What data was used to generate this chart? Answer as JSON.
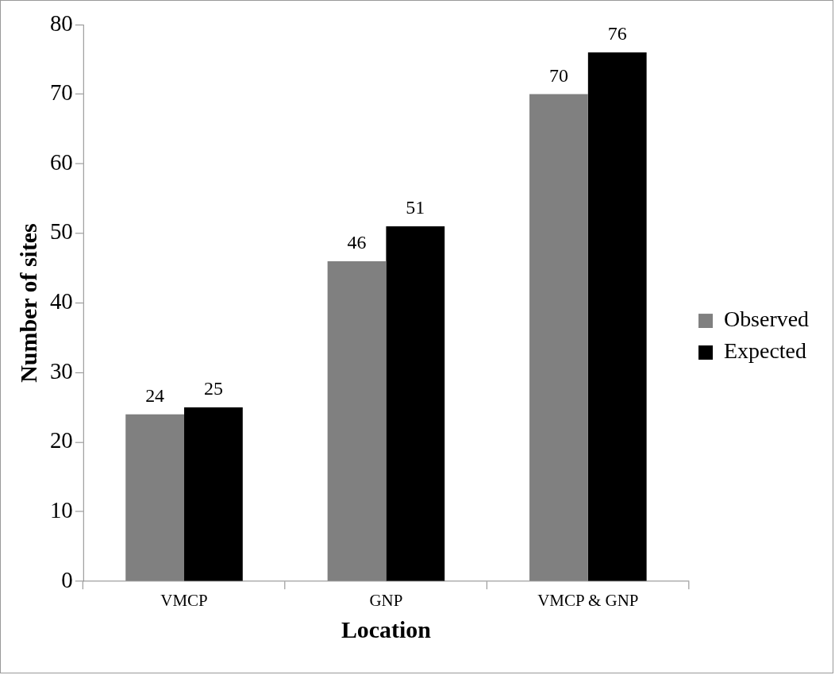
{
  "chart_data": {
    "type": "bar",
    "xlabel": "Location",
    "ylabel": "Number of sites",
    "categories": [
      "VMCP",
      "GNP",
      "VMCP & GNP"
    ],
    "series": [
      {
        "name": "Observed",
        "color": "#808080",
        "values": [
          24,
          46,
          70
        ]
      },
      {
        "name": "Expected",
        "color": "#000000",
        "values": [
          25,
          51,
          76
        ]
      }
    ],
    "ylim": [
      0,
      80
    ],
    "yticks": [
      0,
      10,
      20,
      30,
      40,
      50,
      60,
      70,
      80
    ],
    "legend": "right",
    "data_labels": true
  }
}
